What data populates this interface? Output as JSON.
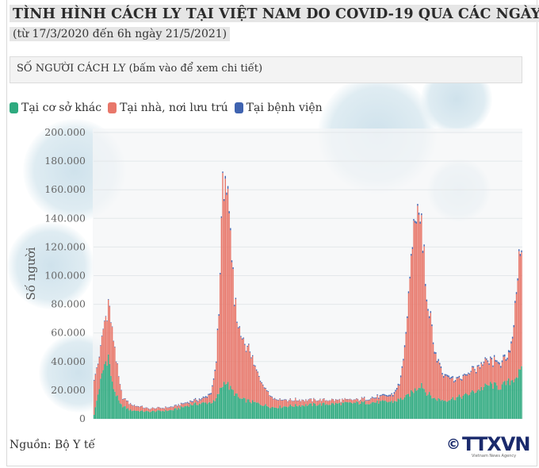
{
  "title": "TÌNH HÌNH CÁCH LY TẠI VIỆT NAM DO COVID-19 QUA CÁC NGÀY",
  "subtitle": "(từ 17/3/2020 đến 6h ngày 21/5/2021)",
  "selector_label": "SỐ NGƯỜI CÁCH LY  (bấm vào để xem chi tiết)",
  "source": "Nguồn: Bộ Y tế",
  "logo": {
    "symbol": "©",
    "text": "TTXVN",
    "sub": "Vietnam News Agency"
  },
  "chart_data": {
    "type": "bar",
    "stacked": true,
    "ylabel": "Số người",
    "ylim": [
      0,
      200000
    ],
    "yticks": [
      "0",
      "20.000",
      "40.000",
      "60.000",
      "80.000",
      "100.000",
      "120.000",
      "140.000",
      "160.000",
      "180.000",
      "200.000"
    ],
    "grid": true,
    "legend_position": "top-left",
    "x_range": [
      "17/3/2020",
      "21/5/2021"
    ],
    "series": [
      {
        "name": "Tại cơ sở khác",
        "color": "#2eaa7f",
        "keypoints": [
          [
            0,
            3000
          ],
          [
            4,
            22000
          ],
          [
            8,
            38000
          ],
          [
            11,
            44000
          ],
          [
            14,
            24000
          ],
          [
            20,
            10000
          ],
          [
            28,
            6000
          ],
          [
            42,
            5000
          ],
          [
            60,
            6000
          ],
          [
            75,
            10000
          ],
          [
            85,
            11000
          ],
          [
            93,
            12000
          ],
          [
            98,
            22000
          ],
          [
            101,
            27000
          ],
          [
            104,
            22000
          ],
          [
            112,
            14000
          ],
          [
            125,
            11000
          ],
          [
            138,
            8000
          ],
          [
            150,
            9000
          ],
          [
            170,
            10000
          ],
          [
            200,
            11000
          ],
          [
            230,
            12000
          ],
          [
            240,
            15000
          ],
          [
            248,
            21000
          ],
          [
            252,
            25000
          ],
          [
            255,
            19000
          ],
          [
            262,
            14000
          ],
          [
            270,
            13000
          ],
          [
            285,
            16000
          ],
          [
            295,
            20000
          ],
          [
            305,
            24000
          ],
          [
            312,
            22000
          ],
          [
            320,
            26000
          ],
          [
            329,
            33000
          ]
        ]
      },
      {
        "name": "Tại nhà, nơi lưu trú",
        "color": "#e8776a",
        "keypoints": [
          [
            0,
            27000
          ],
          [
            4,
            20000
          ],
          [
            7,
            28000
          ],
          [
            10,
            32000
          ],
          [
            13,
            40000
          ],
          [
            18,
            20000
          ],
          [
            22,
            6000
          ],
          [
            28,
            4000
          ],
          [
            42,
            2000
          ],
          [
            60,
            2000
          ],
          [
            75,
            2000
          ],
          [
            85,
            3000
          ],
          [
            90,
            6000
          ],
          [
            94,
            25000
          ],
          [
            97,
            80000
          ],
          [
            99,
            135000
          ],
          [
            101,
            150000
          ],
          [
            104,
            110000
          ],
          [
            108,
            65000
          ],
          [
            112,
            46000
          ],
          [
            118,
            38000
          ],
          [
            125,
            22000
          ],
          [
            132,
            12000
          ],
          [
            138,
            6000
          ],
          [
            150,
            4000
          ],
          [
            170,
            3000
          ],
          [
            200,
            2000
          ],
          [
            230,
            4000
          ],
          [
            235,
            10000
          ],
          [
            240,
            40000
          ],
          [
            244,
            95000
          ],
          [
            247,
            125000
          ],
          [
            249,
            128000
          ],
          [
            252,
            110000
          ],
          [
            256,
            70000
          ],
          [
            262,
            35000
          ],
          [
            268,
            18000
          ],
          [
            278,
            12000
          ],
          [
            288,
            14000
          ],
          [
            298,
            16000
          ],
          [
            305,
            15000
          ],
          [
            312,
            17000
          ],
          [
            318,
            15000
          ],
          [
            322,
            30000
          ],
          [
            325,
            60000
          ],
          [
            327,
            80000
          ],
          [
            329,
            89000
          ]
        ]
      },
      {
        "name": "Tại bệnh viện",
        "color": "#3f63b0",
        "keypoints": [
          [
            0,
            500
          ],
          [
            50,
            200
          ],
          [
            99,
            1000
          ],
          [
            101,
            2000
          ],
          [
            110,
            800
          ],
          [
            150,
            300
          ],
          [
            200,
            200
          ],
          [
            249,
            1500
          ],
          [
            290,
            800
          ],
          [
            329,
            1500
          ]
        ]
      }
    ]
  }
}
